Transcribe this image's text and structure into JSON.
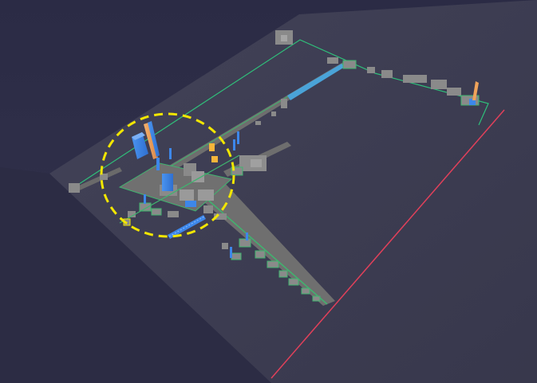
{
  "scene": {
    "background_color": "#30304a",
    "ground_color": "#3a3a4e",
    "outline_color": "#2fbf7a",
    "axis_color": "#e0405a",
    "highlight_color": "#f2e600",
    "block_color": "#8a8a8a",
    "green_edge_color": "#3fb56f",
    "tower_colors": [
      "#3d87ea",
      "#f0a35a",
      "#f5b53a",
      "#4aa3d8"
    ]
  }
}
